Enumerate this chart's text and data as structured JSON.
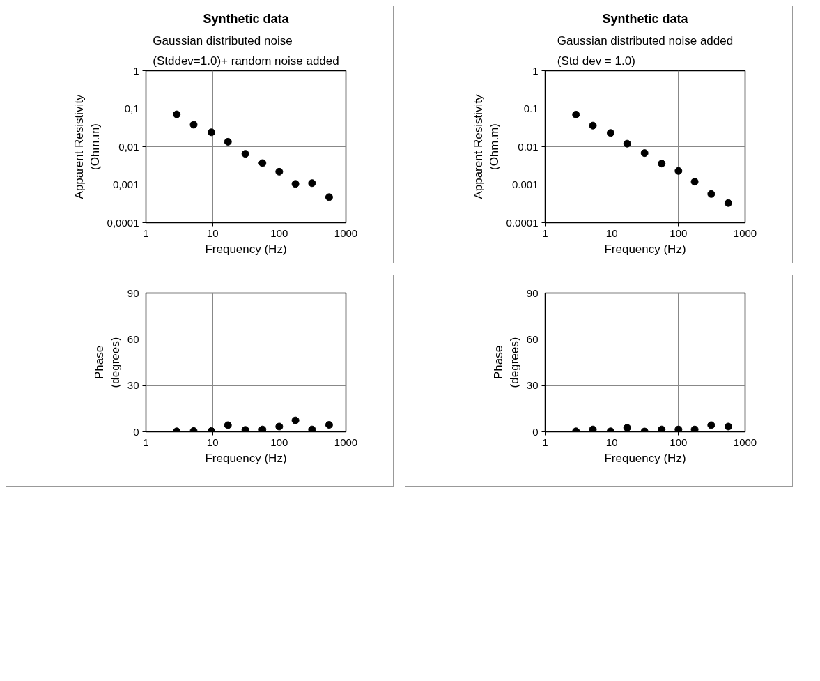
{
  "chart_data": [
    {
      "type": "scatter",
      "title": "Synthetic data",
      "subtitle": "Gaussian distributed noise\n(Stddev=1.0)+ random noise added",
      "xlabel": "Frequency (Hz)",
      "ylabel": "Apparent Resistivity\n(Ohm.m)",
      "log": "xy",
      "xlim": [
        1,
        1000
      ],
      "xticks": [
        1,
        10,
        100,
        1000
      ],
      "ylim": [
        0.0001,
        1
      ],
      "yticks": [
        {
          "value": 0.0001,
          "label": "0,0001"
        },
        {
          "value": 0.001,
          "label": "0,001"
        },
        {
          "value": 0.01,
          "label": "0,01"
        },
        {
          "value": 0.1,
          "label": "0,1"
        },
        1
      ],
      "grid": true,
      "marker": "circle",
      "x": [
        2.9,
        5.2,
        9.6,
        17,
        31,
        56,
        100,
        175,
        310,
        560
      ],
      "series": [
        {
          "color": "#000000",
          "values": [
            0.071,
            0.038,
            0.024,
            0.0135,
            0.0065,
            0.0037,
            0.0022,
            0.00105,
            0.0011,
            0.00047
          ]
        }
      ]
    },
    {
      "type": "scatter",
      "title": "Synthetic data",
      "subtitle": "Gaussian distributed noise added\n(Std dev = 1.0)",
      "xlabel": "Frequency (Hz)",
      "ylabel": "Apparent Resistivity\n(Ohm.m)",
      "log": "xy",
      "xlim": [
        1,
        1000
      ],
      "xticks": [
        1,
        10,
        100,
        1000
      ],
      "ylim": [
        0.0001,
        1
      ],
      "yticks": [
        0.0001,
        0.001,
        0.01,
        0.1,
        1
      ],
      "grid": true,
      "marker": "circle",
      "x": [
        2.9,
        5.2,
        9.6,
        17,
        31,
        56,
        100,
        175,
        310,
        560
      ],
      "series": [
        {
          "color": "#000000",
          "values": [
            0.07,
            0.036,
            0.023,
            0.012,
            0.0068,
            0.0036,
            0.0023,
            0.0012,
            0.00057,
            0.00033
          ]
        }
      ]
    },
    {
      "type": "scatter",
      "xlabel": "Frequency (Hz)",
      "ylabel": "Phase\n(degrees)",
      "log": "x",
      "xlim": [
        1,
        1000
      ],
      "xticks": [
        1,
        10,
        100,
        1000
      ],
      "ylim": [
        0,
        90
      ],
      "yticks": [
        0,
        30,
        60,
        90
      ],
      "grid": true,
      "marker": "circle",
      "x": [
        2.9,
        5.2,
        9.6,
        17,
        31,
        56,
        100,
        175,
        310,
        560
      ],
      "series": [
        {
          "color": "#000000",
          "values": [
            0.3,
            0.5,
            0.5,
            4.3,
            1.2,
            1.5,
            3.4,
            7.4,
            1.5,
            4.5
          ]
        }
      ]
    },
    {
      "type": "scatter",
      "xlabel": "Frequency (Hz)",
      "ylabel": "Phase\n(degrees)",
      "log": "x",
      "xlim": [
        1,
        1000
      ],
      "xticks": [
        1,
        10,
        100,
        1000
      ],
      "ylim": [
        0,
        90
      ],
      "yticks": [
        0,
        30,
        60,
        90
      ],
      "grid": true,
      "marker": "circle",
      "x": [
        2.9,
        5.2,
        9.6,
        17,
        31,
        56,
        100,
        175,
        310,
        560
      ],
      "series": [
        {
          "color": "#000000",
          "values": [
            0.3,
            1.5,
            0.3,
            2.6,
            0.2,
            1.5,
            1.5,
            1.5,
            4.3,
            3.4
          ]
        }
      ]
    }
  ]
}
